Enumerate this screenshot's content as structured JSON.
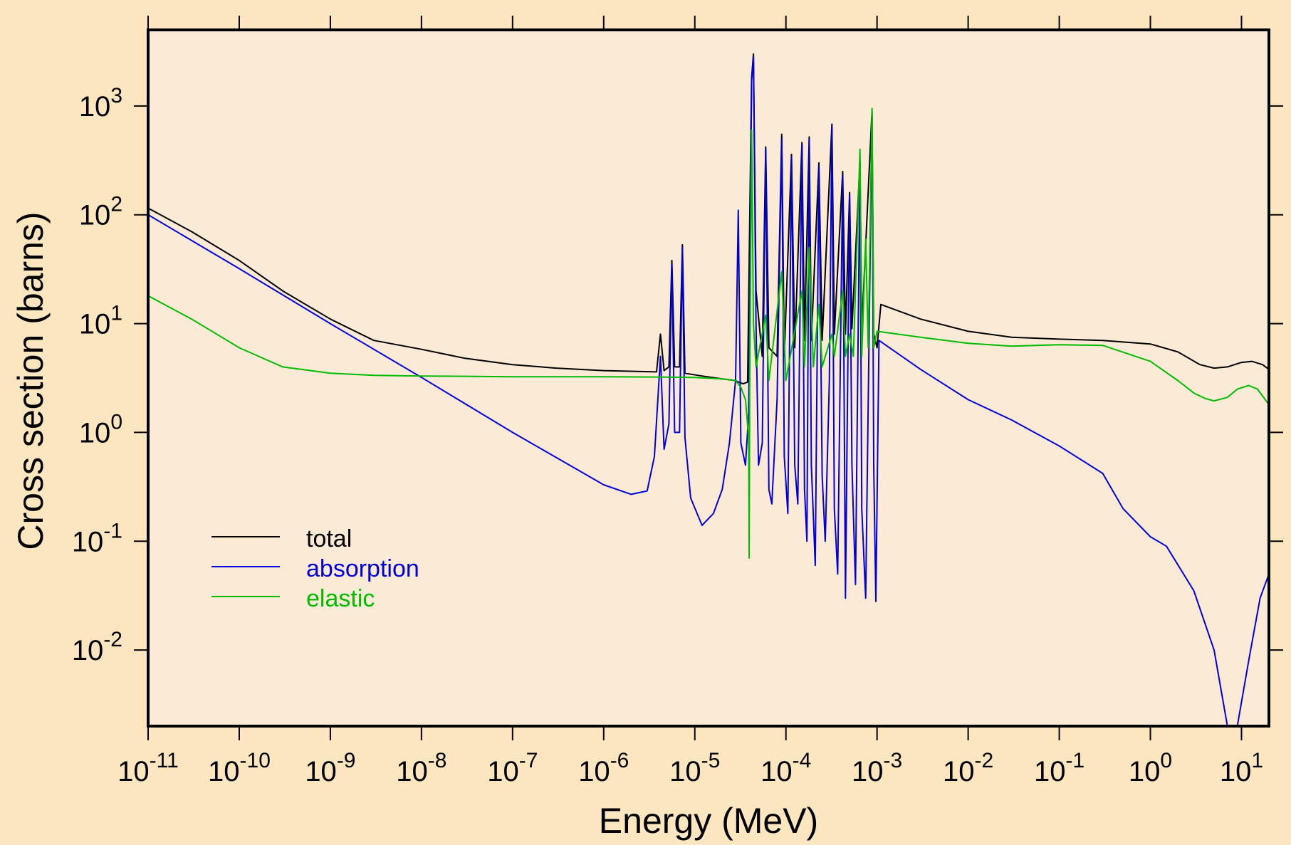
{
  "page": {
    "background_color": "#fbe6c0"
  },
  "chart_data": {
    "type": "line",
    "title": "",
    "xlabel": "Energy (MeV)",
    "ylabel": "Cross section (barns)",
    "xscale": "log",
    "yscale": "log",
    "xlim": [
      1e-11,
      20
    ],
    "ylim": [
      0.002,
      5000
    ],
    "x_ticks": [
      {
        "base": "10",
        "exp": "-11"
      },
      {
        "base": "10",
        "exp": "-10"
      },
      {
        "base": "10",
        "exp": "-9"
      },
      {
        "base": "10",
        "exp": "-8"
      },
      {
        "base": "10",
        "exp": "-7"
      },
      {
        "base": "10",
        "exp": "-6"
      },
      {
        "base": "10",
        "exp": "-5"
      },
      {
        "base": "10",
        "exp": "-4"
      },
      {
        "base": "10",
        "exp": "-3"
      },
      {
        "base": "10",
        "exp": "-2"
      },
      {
        "base": "10",
        "exp": "-1"
      },
      {
        "base": "10",
        "exp": "0"
      },
      {
        "base": "10",
        "exp": "1"
      }
    ],
    "y_ticks": [
      {
        "base": "10",
        "exp": "-2"
      },
      {
        "base": "10",
        "exp": "-1"
      },
      {
        "base": "10",
        "exp": "0"
      },
      {
        "base": "10",
        "exp": "1"
      },
      {
        "base": "10",
        "exp": "2"
      },
      {
        "base": "10",
        "exp": "3"
      }
    ],
    "grid": false,
    "plot_background_color": "#fbebd6",
    "legend": {
      "placement": "lower-left"
    },
    "series": [
      {
        "name": "total",
        "color": "#000000",
        "points": [
          [
            1e-11,
            115
          ],
          [
            3e-11,
            70
          ],
          [
            1e-10,
            38
          ],
          [
            3e-10,
            20
          ],
          [
            1e-09,
            11
          ],
          [
            3e-09,
            7
          ],
          [
            1e-08,
            5.8
          ],
          [
            3e-08,
            4.8
          ],
          [
            1e-07,
            4.2
          ],
          [
            3e-07,
            3.9
          ],
          [
            1e-06,
            3.7
          ],
          [
            3.8e-06,
            3.6
          ],
          [
            4.2e-06,
            8
          ],
          [
            4.6e-06,
            3.7
          ],
          [
            5.2e-06,
            4
          ],
          [
            5.6e-06,
            38
          ],
          [
            6e-06,
            4
          ],
          [
            6.8e-06,
            4
          ],
          [
            7.3e-06,
            53
          ],
          [
            7.8e-06,
            3.5
          ],
          [
            1.2e-05,
            3.3
          ],
          [
            2e-05,
            3.1
          ],
          [
            2.8e-05,
            3.0
          ],
          [
            3e-05,
            2.9
          ],
          [
            3.4e-05,
            2.8
          ],
          [
            3.8e-05,
            2.9
          ],
          [
            4.2e-05,
            1800
          ],
          [
            4.4e-05,
            3000
          ],
          [
            4.7e-05,
            20
          ],
          [
            5.5e-05,
            5
          ],
          [
            6e-05,
            420
          ],
          [
            6.5e-05,
            6
          ],
          [
            8e-05,
            5
          ],
          [
            9e-05,
            550
          ],
          [
            9.6e-05,
            5
          ],
          [
            0.000115,
            360
          ],
          [
            0.000125,
            6
          ],
          [
            0.00015,
            460
          ],
          [
            0.00016,
            7
          ],
          [
            0.00018,
            520
          ],
          [
            0.00019,
            7
          ],
          [
            0.00023,
            300
          ],
          [
            0.00025,
            7
          ],
          [
            0.00032,
            680
          ],
          [
            0.00034,
            8
          ],
          [
            0.00042,
            250
          ],
          [
            0.00045,
            8
          ],
          [
            0.0005,
            160
          ],
          [
            0.00053,
            9
          ],
          [
            0.00065,
            310
          ],
          [
            0.00068,
            9
          ],
          [
            0.00088,
            900
          ],
          [
            0.00092,
            8
          ],
          [
            0.001,
            6
          ],
          [
            0.0011,
            15
          ],
          [
            0.003,
            11
          ],
          [
            0.01,
            8.5
          ],
          [
            0.03,
            7.5
          ],
          [
            0.1,
            7.2
          ],
          [
            0.3,
            7.0
          ],
          [
            1,
            6.5
          ],
          [
            2,
            5.5
          ],
          [
            3.5,
            4.2
          ],
          [
            5,
            3.9
          ],
          [
            7,
            4.0
          ],
          [
            10,
            4.4
          ],
          [
            13,
            4.5
          ],
          [
            17,
            4.2
          ],
          [
            20,
            3.8
          ]
        ]
      },
      {
        "name": "absorption",
        "color": "#0000dd",
        "points": [
          [
            1e-11,
            100
          ],
          [
            1e-10,
            32
          ],
          [
            1e-09,
            10
          ],
          [
            1e-08,
            3.2
          ],
          [
            1e-07,
            1.0
          ],
          [
            1e-06,
            0.33
          ],
          [
            2e-06,
            0.27
          ],
          [
            3e-06,
            0.29
          ],
          [
            3.6e-06,
            0.6
          ],
          [
            4.2e-06,
            5
          ],
          [
            4.6e-06,
            0.7
          ],
          [
            5.2e-06,
            1.2
          ],
          [
            5.6e-06,
            35
          ],
          [
            6e-06,
            1.0
          ],
          [
            6.8e-06,
            1.0
          ],
          [
            7.3e-06,
            50
          ],
          [
            7.8e-06,
            0.9
          ],
          [
            9e-06,
            0.25
          ],
          [
            1.2e-05,
            0.14
          ],
          [
            1.6e-05,
            0.18
          ],
          [
            2e-05,
            0.3
          ],
          [
            2.4e-05,
            0.8
          ],
          [
            2.8e-05,
            3
          ],
          [
            3e-05,
            110
          ],
          [
            3.2e-05,
            0.8
          ],
          [
            3.6e-05,
            0.5
          ],
          [
            3.9e-05,
            1.5
          ],
          [
            4.2e-05,
            1700
          ],
          [
            4.4e-05,
            2800
          ],
          [
            4.7e-05,
            10
          ],
          [
            5e-05,
            0.5
          ],
          [
            5.5e-05,
            0.8
          ],
          [
            6e-05,
            400
          ],
          [
            6.5e-05,
            0.3
          ],
          [
            7e-05,
            0.22
          ],
          [
            8e-05,
            2.0
          ],
          [
            9e-05,
            500
          ],
          [
            9.6e-05,
            0.6
          ],
          [
            0.000105,
            0.18
          ],
          [
            0.000115,
            340
          ],
          [
            0.000125,
            0.5
          ],
          [
            0.000135,
            0.22
          ],
          [
            0.00015,
            440
          ],
          [
            0.00016,
            0.3
          ],
          [
            0.00017,
            0.1
          ],
          [
            0.00018,
            500
          ],
          [
            0.00019,
            0.5
          ],
          [
            0.00021,
            0.06
          ],
          [
            0.00023,
            280
          ],
          [
            0.00025,
            0.4
          ],
          [
            0.00027,
            0.1
          ],
          [
            0.0003,
            3
          ],
          [
            0.00032,
            650
          ],
          [
            0.00034,
            0.2
          ],
          [
            0.00037,
            0.05
          ],
          [
            0.00042,
            230
          ],
          [
            0.00045,
            0.03
          ],
          [
            0.0005,
            150
          ],
          [
            0.00053,
            0.5
          ],
          [
            0.00058,
            0.04
          ],
          [
            0.00065,
            300
          ],
          [
            0.00068,
            0.2
          ],
          [
            0.00075,
            0.03
          ],
          [
            0.00088,
            880
          ],
          [
            0.00092,
            0.5
          ],
          [
            0.00097,
            0.028
          ],
          [
            0.00105,
            7
          ],
          [
            0.003,
            3.8
          ],
          [
            0.01,
            2.0
          ],
          [
            0.03,
            1.3
          ],
          [
            0.1,
            0.75
          ],
          [
            0.3,
            0.42
          ],
          [
            0.5,
            0.2
          ],
          [
            1,
            0.11
          ],
          [
            1.5,
            0.09
          ],
          [
            3,
            0.035
          ],
          [
            5,
            0.01
          ],
          [
            7,
            0.002
          ],
          [
            9,
            0.002
          ],
          [
            12,
            0.008
          ],
          [
            16,
            0.03
          ],
          [
            20,
            0.05
          ]
        ]
      },
      {
        "name": "elastic",
        "color": "#00bb00",
        "points": [
          [
            1e-11,
            18
          ],
          [
            3e-11,
            11
          ],
          [
            1e-10,
            6
          ],
          [
            3e-10,
            4
          ],
          [
            1e-09,
            3.5
          ],
          [
            3e-09,
            3.35
          ],
          [
            1e-08,
            3.3
          ],
          [
            3e-08,
            3.28
          ],
          [
            1e-07,
            3.25
          ],
          [
            1e-06,
            3.25
          ],
          [
            5e-06,
            3.22
          ],
          [
            1e-05,
            3.2
          ],
          [
            2e-05,
            3.1
          ],
          [
            2.8e-05,
            3.0
          ],
          [
            3.2e-05,
            2.6
          ],
          [
            3.6e-05,
            2.0
          ],
          [
            3.9e-05,
            0.9
          ],
          [
            3.95e-05,
            0.07
          ],
          [
            4e-05,
            2.5
          ],
          [
            4.2e-05,
            600
          ],
          [
            4.4e-05,
            10
          ],
          [
            4.7e-05,
            4
          ],
          [
            6e-05,
            12
          ],
          [
            6.5e-05,
            3
          ],
          [
            9e-05,
            30
          ],
          [
            0.0001,
            3
          ],
          [
            0.00015,
            20
          ],
          [
            0.00016,
            4
          ],
          [
            0.00018,
            50
          ],
          [
            0.0002,
            4
          ],
          [
            0.00023,
            15
          ],
          [
            0.00025,
            4
          ],
          [
            0.00032,
            8
          ],
          [
            0.00034,
            5
          ],
          [
            0.00042,
            20
          ],
          [
            0.00045,
            5
          ],
          [
            0.0005,
            8
          ],
          [
            0.00055,
            5
          ],
          [
            0.00065,
            400
          ],
          [
            0.00068,
            5
          ],
          [
            0.00075,
            60
          ],
          [
            0.0008,
            6
          ],
          [
            0.00088,
            950
          ],
          [
            0.00092,
            6
          ],
          [
            0.001,
            8.5
          ],
          [
            0.003,
            7.5
          ],
          [
            0.01,
            6.6
          ],
          [
            0.03,
            6.2
          ],
          [
            0.1,
            6.4
          ],
          [
            0.3,
            6.3
          ],
          [
            1,
            4.5
          ],
          [
            2,
            3.0
          ],
          [
            3,
            2.3
          ],
          [
            4,
            2.05
          ],
          [
            5,
            1.95
          ],
          [
            7,
            2.1
          ],
          [
            9,
            2.5
          ],
          [
            12,
            2.7
          ],
          [
            15,
            2.5
          ],
          [
            20,
            1.8
          ]
        ]
      }
    ]
  }
}
